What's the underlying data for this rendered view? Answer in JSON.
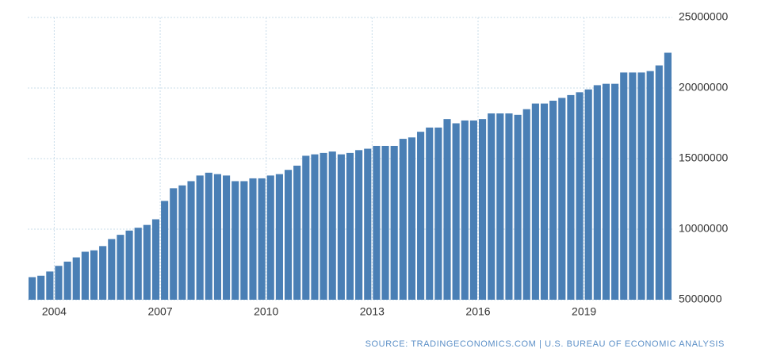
{
  "chart_data": {
    "type": "bar",
    "source": "SOURCE: TRADINGECONOMICS.COM | U.S. BUREAU OF ECONOMIC ANALYSIS",
    "color": "#4a7fb5",
    "grid": true,
    "x": [
      2003.25,
      2003.5,
      2003.75,
      2004,
      2004.25,
      2004.5,
      2004.75,
      2005,
      2005.25,
      2005.5,
      2005.75,
      2006,
      2006.25,
      2006.5,
      2006.75,
      2007,
      2007.25,
      2007.5,
      2007.75,
      2008,
      2008.25,
      2008.5,
      2008.75,
      2009,
      2009.25,
      2009.5,
      2009.75,
      2010,
      2010.25,
      2010.5,
      2010.75,
      2011,
      2011.25,
      2011.5,
      2011.75,
      2012,
      2012.25,
      2012.5,
      2012.75,
      2013,
      2013.25,
      2013.5,
      2013.75,
      2014,
      2014.25,
      2014.5,
      2014.75,
      2015,
      2015.25,
      2015.5,
      2015.75,
      2016,
      2016.25,
      2016.5,
      2016.75,
      2017,
      2017.25,
      2017.5,
      2017.75,
      2018,
      2018.25,
      2018.5,
      2018.75,
      2019,
      2019.25,
      2019.5,
      2019.75,
      2020,
      2020.25,
      2020.5,
      2020.75,
      2021,
      2021.25
    ],
    "values": [
      6600000,
      6700000,
      7000000,
      7400000,
      7700000,
      8000000,
      8400000,
      8500000,
      8800000,
      9300000,
      9600000,
      9900000,
      10100000,
      10300000,
      10700000,
      12000000,
      12900000,
      13100000,
      13400000,
      13800000,
      14000000,
      13900000,
      13800000,
      13400000,
      13400000,
      13600000,
      13600000,
      13800000,
      13900000,
      14200000,
      14500000,
      15200000,
      15300000,
      15400000,
      15500000,
      15300000,
      15400000,
      15600000,
      15700000,
      15900000,
      15900000,
      15900000,
      16400000,
      16500000,
      16900000,
      17200000,
      17200000,
      17800000,
      17500000,
      17700000,
      17700000,
      17800000,
      18200000,
      18200000,
      18200000,
      18100000,
      18500000,
      18900000,
      18900000,
      19100000,
      19300000,
      19500000,
      19700000,
      19900000,
      20200000,
      20300000,
      20300000,
      21100000,
      21100000,
      21100000,
      21200000,
      21600000,
      22500000
    ],
    "xlim": [
      2003.25,
      2021.5
    ],
    "xticks": [
      2004,
      2007,
      2010,
      2013,
      2016,
      2019
    ],
    "ylim": [
      5000000,
      25000000
    ],
    "yticks": [
      5000000,
      10000000,
      15000000,
      20000000,
      25000000
    ]
  }
}
